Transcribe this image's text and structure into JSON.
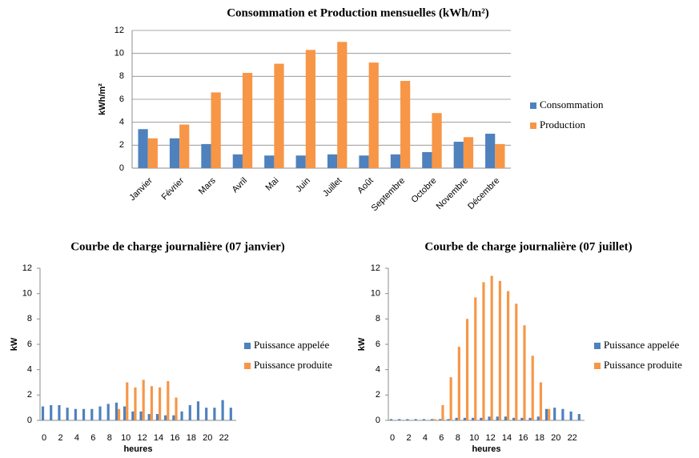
{
  "chart_data": [
    {
      "type": "bar",
      "title": "Consommation et Production mensuelles (kWh/m²)",
      "ylabel": "kWh/m²",
      "categories": [
        "Janvier",
        "Février",
        "Mars",
        "Avril",
        "Mai",
        "Juin",
        "Juillet",
        "Août",
        "Septembre",
        "Octobre",
        "Novembre",
        "Décembre"
      ],
      "series": [
        {
          "name": "Consommation",
          "color": "#4f81bd",
          "values": [
            3.4,
            2.6,
            2.1,
            1.2,
            1.1,
            1.1,
            1.2,
            1.1,
            1.2,
            1.4,
            2.3,
            3.0
          ]
        },
        {
          "name": "Production",
          "color": "#f79646",
          "values": [
            2.6,
            3.8,
            6.6,
            8.3,
            9.1,
            10.3,
            11.0,
            9.2,
            7.6,
            4.8,
            2.7,
            2.1
          ]
        }
      ],
      "ylim": [
        0,
        12
      ],
      "yticks": [
        0,
        2,
        4,
        6,
        8,
        10,
        12
      ],
      "grid": true,
      "legend": "right"
    },
    {
      "type": "bar",
      "title": "Courbe de charge journalière (07 janvier)",
      "ylabel": "kW",
      "xlabel": "heures",
      "categories": [
        "0",
        null,
        "2",
        null,
        "4",
        null,
        "6",
        null,
        "8",
        null,
        "10",
        null,
        "12",
        null,
        "14",
        null,
        "16",
        null,
        "18",
        null,
        "20",
        null,
        "22",
        null
      ],
      "series": [
        {
          "name": "Puissance appelée",
          "color": "#4f81bd",
          "values": [
            1.1,
            1.2,
            1.2,
            1.0,
            0.9,
            0.9,
            0.9,
            1.1,
            1.3,
            1.4,
            1.1,
            0.7,
            0.7,
            0.5,
            0.5,
            0.4,
            0.4,
            0.7,
            1.2,
            1.5,
            1.0,
            1.0,
            1.6,
            1.0
          ]
        },
        {
          "name": "Puissance produite",
          "color": "#f79646",
          "values": [
            0,
            0,
            0,
            0,
            0,
            0,
            0,
            0,
            0,
            0.9,
            3.0,
            2.6,
            3.2,
            2.7,
            2.6,
            3.1,
            1.8,
            0,
            0,
            0,
            0,
            0,
            0,
            0
          ]
        }
      ],
      "ylim": [
        0,
        12
      ],
      "yticks": [
        0,
        2,
        4,
        6,
        8,
        10,
        12
      ],
      "grid": false,
      "legend": "right"
    },
    {
      "type": "bar",
      "title": "Courbe de charge journalière (07 juillet)",
      "ylabel": "kW",
      "xlabel": "heures",
      "categories": [
        "0",
        null,
        "2",
        null,
        "4",
        null,
        "6",
        null,
        "8",
        null,
        "10",
        null,
        "12",
        null,
        "14",
        null,
        "16",
        null,
        "18",
        null,
        "20",
        null,
        "22",
        null
      ],
      "series": [
        {
          "name": "Puissance appelée",
          "color": "#4f81bd",
          "values": [
            0.1,
            0.1,
            0.1,
            0.1,
            0.1,
            0.1,
            0.1,
            0.1,
            0.2,
            0.2,
            0.2,
            0.2,
            0.3,
            0.3,
            0.3,
            0.2,
            0.2,
            0.2,
            0.3,
            0.9,
            1.0,
            0.9,
            0.7,
            0.5
          ]
        },
        {
          "name": "Puissance produite",
          "color": "#f79646",
          "values": [
            0,
            0,
            0,
            0,
            0,
            0.1,
            1.2,
            3.4,
            5.8,
            8.0,
            9.7,
            10.9,
            11.4,
            11.0,
            10.2,
            9.2,
            7.5,
            5.1,
            3.0,
            0.9,
            0,
            0,
            0,
            0
          ]
        }
      ],
      "ylim": [
        0,
        12
      ],
      "yticks": [
        0,
        2,
        4,
        6,
        8,
        10,
        12
      ],
      "grid": false,
      "legend": "right"
    }
  ]
}
